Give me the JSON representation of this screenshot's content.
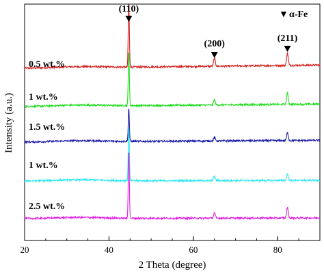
{
  "chart_data": {
    "type": "line",
    "xlabel": "2 Theta (degree)",
    "ylabel": "Intensity (a.u.)",
    "xlim": [
      20,
      90
    ],
    "x_ticks": [
      20,
      40,
      60,
      80
    ],
    "y_ticks_labeled": false,
    "grid": false,
    "legend": {
      "marker": "▼",
      "label": "α-Fe",
      "placement": "top-right"
    },
    "peaks": [
      {
        "hkl": "(110)",
        "x": 44.7
      },
      {
        "hkl": "(200)",
        "x": 65.0
      },
      {
        "hkl": "(211)",
        "x": 82.3
      }
    ],
    "series": [
      {
        "name": "0.5 wt.%",
        "color": "#d42020",
        "baseline_start": 0.9,
        "baseline_end": 0.99,
        "peak_heights": [
          1.95,
          0.22,
          0.35
        ]
      },
      {
        "name": "1 wt.%",
        "color": "#22dd22",
        "baseline_start": 0.88,
        "baseline_end": 0.95,
        "peak_heights": [
          1.55,
          0.15,
          0.32
        ]
      },
      {
        "name": "1.5 wt.%",
        "color": "#1a1aa8",
        "baseline_start": 0.88,
        "baseline_end": 0.93,
        "peak_heights": [
          0.95,
          0.1,
          0.22
        ]
      },
      {
        "name": "1 wt.%",
        "color": "#2ee6f0",
        "baseline_start": 0.88,
        "baseline_end": 0.9,
        "peak_heights": [
          1.55,
          0.12,
          0.18
        ]
      },
      {
        "name": "2.5 wt.%",
        "color": "#e020e0",
        "baseline_start": 0.88,
        "baseline_end": 0.9,
        "peak_heights": [
          1.95,
          0.15,
          0.3
        ]
      }
    ]
  }
}
